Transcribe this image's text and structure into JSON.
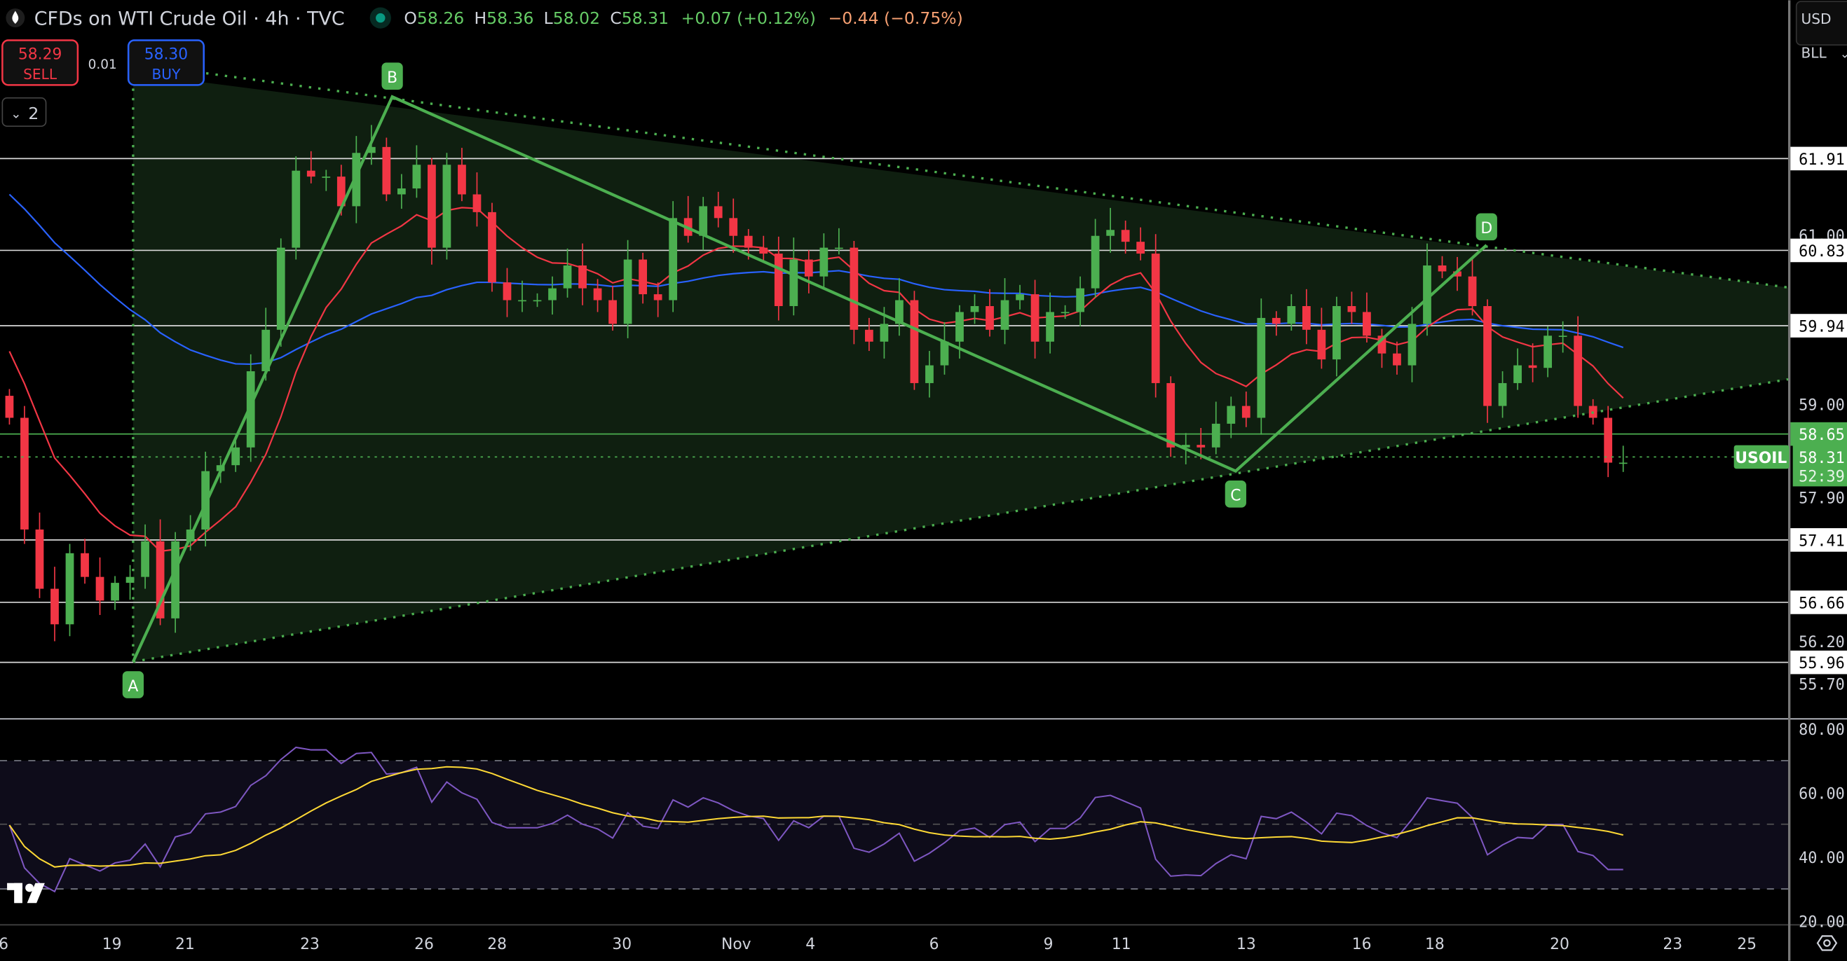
{
  "header": {
    "title": "CFDs on WTI Crude Oil · 4h · TVC",
    "o_label": "O",
    "o": "58.26",
    "h_label": "H",
    "h": "58.36",
    "l_label": "L",
    "l": "58.02",
    "c_label": "C",
    "c": "58.31",
    "change": "+0.07 (+0.12%)",
    "change2": "−0.44 (−0.75%)"
  },
  "trade": {
    "sell_price": "58.29",
    "sell_label": "SELL",
    "spread": "0.01",
    "buy_price": "58.30",
    "buy_label": "BUY"
  },
  "indicators_toggle": "2",
  "currency": "USD",
  "unit": "BLL",
  "symbol_tag": "USOIL",
  "last_price": "58.31",
  "countdown": "52:39",
  "colors": {
    "up": "#4caf50",
    "down": "#f23645",
    "ma_slow": "#2962ff",
    "ma_fast": "#f23645",
    "rsi": "#7e57c2",
    "rsi_ma": "#fdd835",
    "pattern": "#4caf50"
  },
  "pattern_points": [
    {
      "label": "A",
      "price": 55.96
    },
    {
      "label": "B",
      "price": 62.63
    },
    {
      "label": "C",
      "price": 58.21
    },
    {
      "label": "D",
      "price": 60.88
    }
  ],
  "levels": [
    {
      "label": "61.91",
      "value": 61.91
    },
    {
      "label": "60.83",
      "value": 60.83
    },
    {
      "label": "59.94",
      "value": 59.94
    },
    {
      "label": "58.65",
      "value": 58.65,
      "highlight": true
    },
    {
      "label": "57.41",
      "value": 57.41
    },
    {
      "label": "56.66",
      "value": 56.66
    },
    {
      "label": "55.96",
      "value": 55.96
    }
  ],
  "price_ticks": [
    {
      "label": "61.00",
      "value": 61.0
    },
    {
      "label": "59.00",
      "value": 59.0
    },
    {
      "label": "57.90",
      "value": 57.9
    },
    {
      "label": "56.20",
      "value": 56.2
    },
    {
      "label": "55.70",
      "value": 55.7
    }
  ],
  "rsi_ticks": [
    {
      "label": "80.00",
      "value": 80
    },
    {
      "label": "60.00",
      "value": 60
    },
    {
      "label": "40.00",
      "value": 40
    },
    {
      "label": "20.00",
      "value": 20
    }
  ],
  "date_ticks": [
    "6",
    "19",
    "21",
    "23",
    "26",
    "28",
    "30",
    "Nov",
    "4",
    "6",
    "9",
    "11",
    "13",
    "16",
    "18",
    "20",
    "23",
    "25"
  ],
  "chart_data": {
    "type": "candlestick",
    "title": "CFDs on WTI Crude Oil · 4h · TVC",
    "ylabel": "USD/BLL",
    "ylim": [
      55.5,
      63.0
    ],
    "closes": [
      58.84,
      57.52,
      56.82,
      56.4,
      57.24,
      56.96,
      56.68,
      56.89,
      56.96,
      57.38,
      56.47,
      57.38,
      57.52,
      58.21,
      58.28,
      58.49,
      59.39,
      59.88,
      60.85,
      61.76,
      61.69,
      61.69,
      61.34,
      61.97,
      62.04,
      61.48,
      61.55,
      61.83,
      60.85,
      61.83,
      61.48,
      61.27,
      60.44,
      60.23,
      60.23,
      60.23,
      60.37,
      60.64,
      60.37,
      60.23,
      59.95,
      60.71,
      60.3,
      60.23,
      61.2,
      60.99,
      61.34,
      61.2,
      60.99,
      60.85,
      60.78,
      60.16,
      60.71,
      60.51,
      60.85,
      60.85,
      59.88,
      59.74,
      59.95,
      60.23,
      59.25,
      59.46,
      59.74,
      60.09,
      60.16,
      59.88,
      60.23,
      60.3,
      59.74,
      60.09,
      60.09,
      60.37,
      60.99,
      61.06,
      60.92,
      60.78,
      59.25,
      58.49,
      58.52,
      58.49,
      58.77,
      58.98,
      58.84,
      60.02,
      59.95,
      60.16,
      59.88,
      59.53,
      60.16,
      60.09,
      59.81,
      59.6,
      59.46,
      59.95,
      60.64,
      60.57,
      60.51,
      60.16,
      58.98,
      59.25,
      59.46,
      59.43,
      59.81,
      59.81,
      58.98,
      58.84,
      58.31,
      58.31
    ],
    "indicators": [
      "MA slow (blue)",
      "MA fast (red)",
      "RSI 14",
      "RSI MA"
    ],
    "rsi_levels": [
      70,
      50,
      30
    ]
  }
}
